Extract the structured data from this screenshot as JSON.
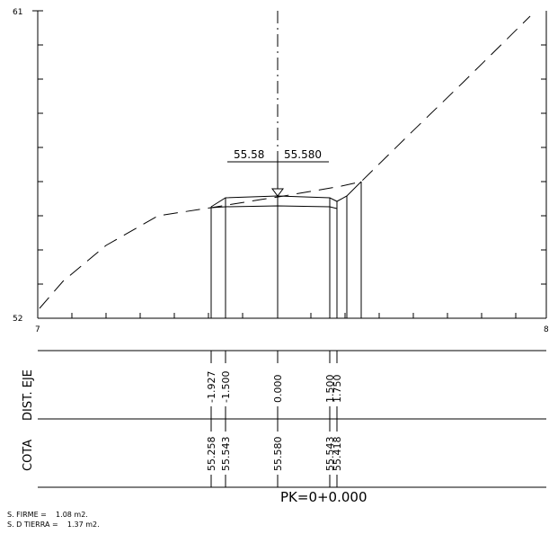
{
  "y_axis": {
    "min_label": "52",
    "max_label": "61"
  },
  "x_axis": {
    "min_label": "7",
    "max_label": "8"
  },
  "center_level": {
    "left_label": "55.58",
    "right_label": "55.580"
  },
  "band_labels": {
    "dist": "DIST. EJE",
    "cota": "COTA"
  },
  "stations": [
    {
      "dist": "-1.927",
      "cota": "55.258"
    },
    {
      "dist": "-1.500",
      "cota": "55.543"
    },
    {
      "dist": "0.000",
      "cota": "55.580"
    },
    {
      "dist": "1.500",
      "cota": "55.543"
    },
    {
      "dist": "1.750",
      "cota": "55.418"
    }
  ],
  "pk_label": "PK=0+0.000",
  "areas": {
    "firme": "S. FIRME =    1.08 m2.",
    "tierra": "S. D TIERRA =    1.37 m2."
  }
}
